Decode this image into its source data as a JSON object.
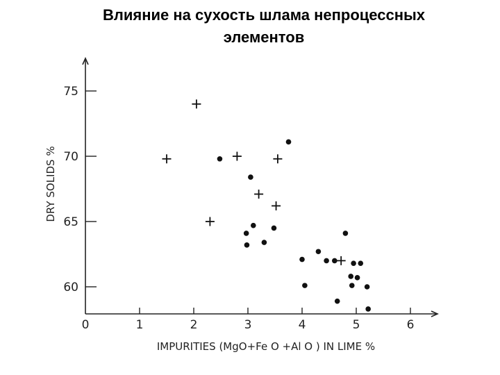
{
  "slide": {
    "title_line1": "Влияние на сухость шлама непроцессных",
    "title_line2": "элементов"
  },
  "chart_data": {
    "type": "scatter",
    "xlabel": "IMPURITIES (MgO+Fe O +Al O ) IN LIME %",
    "ylabel": "DRY SOLIDS %",
    "xlim": [
      0,
      6.5
    ],
    "ylim": [
      58.3,
      77.5
    ],
    "x_ticks": [
      0,
      1,
      2,
      3,
      4,
      5,
      6
    ],
    "y_ticks": [
      60,
      65,
      70,
      75
    ],
    "grid": false,
    "series": [
      {
        "marker": "dot",
        "points": [
          [
            2.48,
            69.8
          ],
          [
            3.05,
            68.4
          ],
          [
            3.75,
            71.1
          ],
          [
            2.97,
            64.1
          ],
          [
            3.1,
            64.7
          ],
          [
            3.48,
            64.5
          ],
          [
            2.98,
            63.2
          ],
          [
            3.3,
            63.4
          ],
          [
            4.0,
            62.1
          ],
          [
            4.3,
            62.7
          ],
          [
            4.45,
            62.0
          ],
          [
            4.6,
            62.0
          ],
          [
            4.8,
            64.1
          ],
          [
            4.95,
            61.8
          ],
          [
            5.08,
            61.8
          ],
          [
            4.05,
            60.1
          ],
          [
            4.9,
            60.8
          ],
          [
            5.02,
            60.7
          ],
          [
            4.92,
            60.1
          ],
          [
            5.2,
            60.0
          ],
          [
            4.65,
            58.9
          ],
          [
            5.22,
            58.3
          ]
        ]
      },
      {
        "marker": "plus",
        "points": [
          [
            2.05,
            74.0
          ],
          [
            1.5,
            69.8
          ],
          [
            2.8,
            70.0
          ],
          [
            3.55,
            69.8
          ],
          [
            3.2,
            67.1
          ],
          [
            3.52,
            66.2
          ],
          [
            2.3,
            65.0
          ],
          [
            4.72,
            62.0
          ]
        ]
      }
    ]
  }
}
